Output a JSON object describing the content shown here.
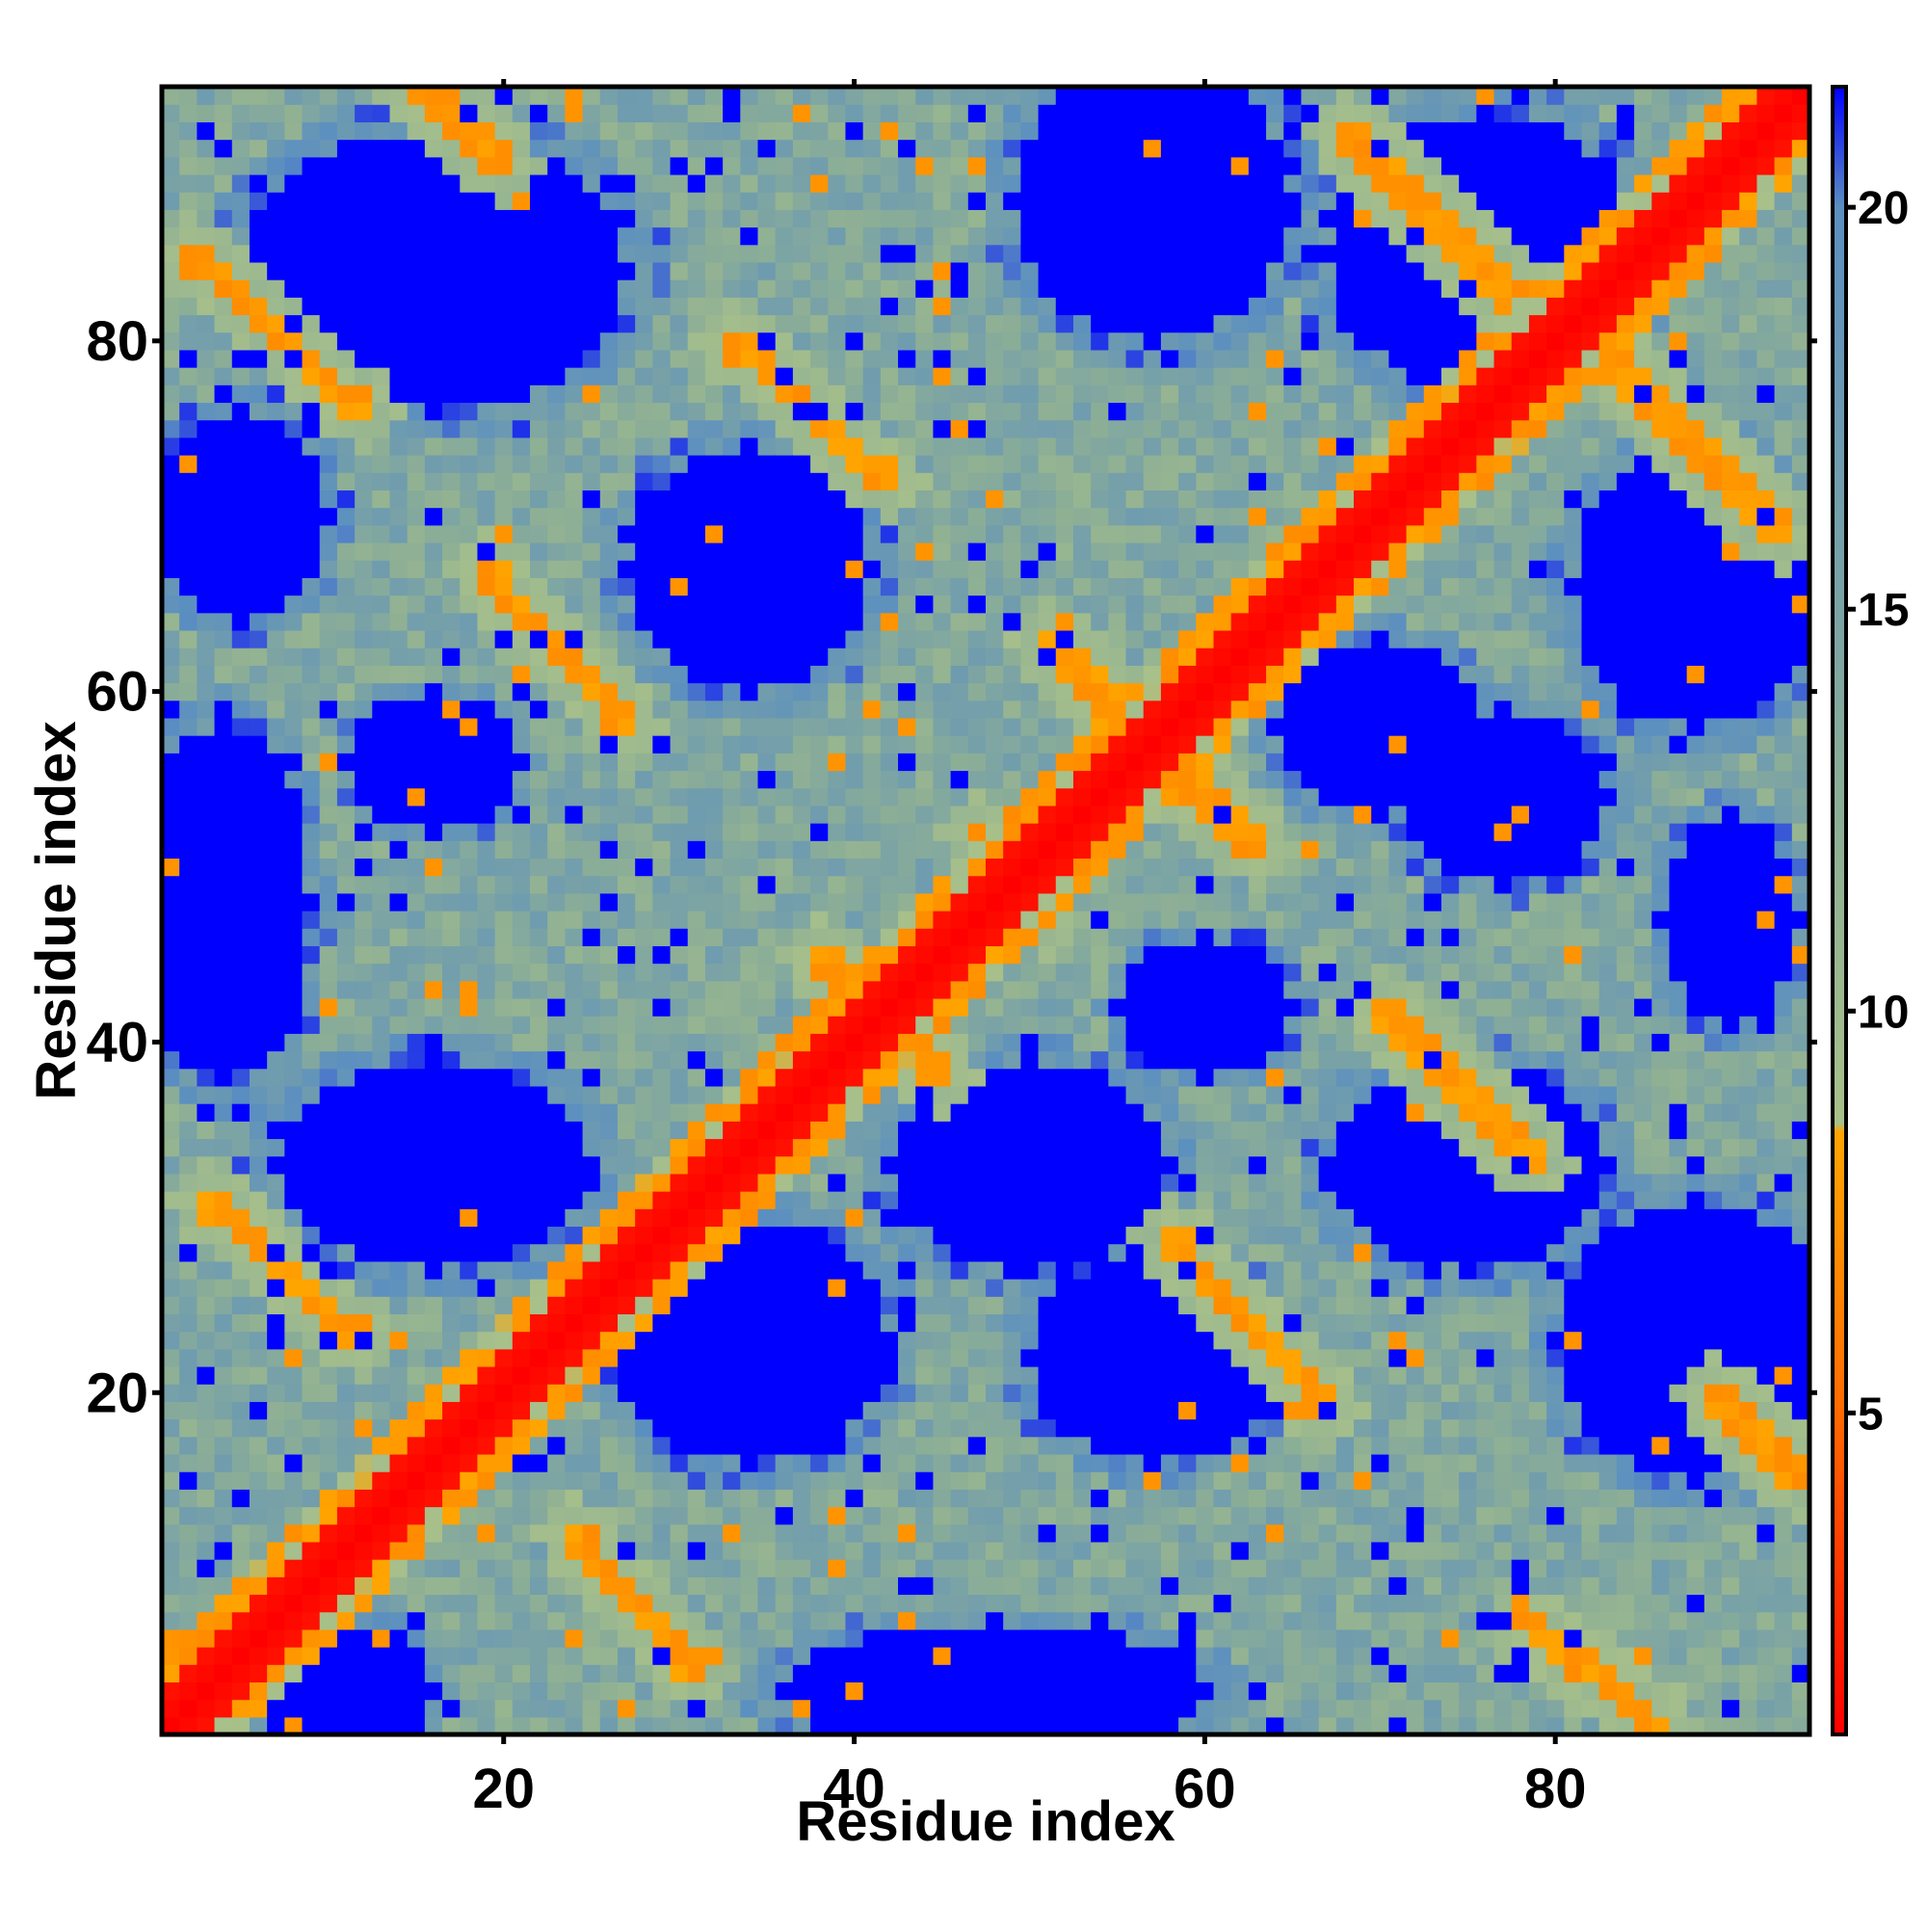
{
  "chart_data": {
    "type": "heatmap",
    "title": "",
    "xlabel": "Residue index",
    "ylabel": "Residue index",
    "n_residues": 94,
    "xlim": [
      0.5,
      94.5
    ],
    "ylim": [
      0.5,
      94.5
    ],
    "x_ticks": [
      20,
      40,
      60,
      80
    ],
    "y_ticks": [
      20,
      40,
      60,
      80
    ],
    "colorbar": {
      "range": [
        1,
        21.5
      ],
      "ticks": [
        5,
        10,
        15,
        20
      ],
      "stops": [
        {
          "value": 1,
          "color": "#ff0000"
        },
        {
          "value": 5,
          "color": "#ff6a00"
        },
        {
          "value": 8.5,
          "color": "#ffa500"
        },
        {
          "value": 8.6,
          "color": "#a8c08a"
        },
        {
          "value": 12,
          "color": "#8fb094"
        },
        {
          "value": 20,
          "color": "#5b8fc0"
        },
        {
          "value": 21.5,
          "color": "#0000ff"
        }
      ]
    },
    "diagonal_band_halfwidth": 2,
    "contact_bands": [
      {
        "p0": [
          2,
          85
        ],
        "p1": [
          12,
          76
        ],
        "value": 7
      },
      {
        "p0": [
          14,
          96
        ],
        "p1": [
          20,
          90
        ],
        "value": 7
      },
      {
        "p0": [
          33,
          80
        ],
        "p1": [
          42,
          72
        ],
        "value": 7
      },
      {
        "p0": [
          19,
          67
        ],
        "p1": [
          27,
          58
        ],
        "value": 7
      },
      {
        "p0": [
          38,
          45
        ],
        "p1": [
          45,
          38
        ],
        "value": 7
      },
      {
        "p0": [
          47,
          52
        ],
        "p1": [
          51,
          47
        ],
        "value": 7
      },
      {
        "p0": [
          51,
          63
        ],
        "p1": [
          63,
          51
        ],
        "value": 7
      },
      {
        "p0": [
          3,
          31
        ],
        "p1": [
          12,
          23
        ],
        "value": 7
      },
      {
        "p0": [
          24,
          12
        ],
        "p1": [
          31,
          4
        ],
        "value": 7
      },
      {
        "p0": [
          58,
          29
        ],
        "p1": [
          67,
          19
        ],
        "value": 7
      },
      {
        "p0": [
          70,
          42
        ],
        "p1": [
          79,
          33
        ],
        "value": 7
      },
      {
        "p0": [
          68,
          92
        ],
        "p1": [
          78,
          82
        ],
        "value": 7
      },
      {
        "p0": [
          82,
          80
        ],
        "p1": [
          93,
          69
        ],
        "value": 7
      },
      {
        "p0": [
          89,
          20
        ],
        "p1": [
          94,
          15
        ],
        "value": 7
      },
      {
        "p0": [
          78,
          7
        ],
        "p1": [
          86,
          1
        ],
        "value": 7
      }
    ],
    "voids": [
      {
        "cx": 16,
        "cy": 84,
        "rx": 11,
        "ry": 8
      },
      {
        "cx": 34,
        "cy": 67,
        "rx": 7,
        "ry": 7
      },
      {
        "cx": 16,
        "cy": 56,
        "rx": 5,
        "ry": 4
      },
      {
        "cx": 16,
        "cy": 33,
        "rx": 9,
        "ry": 6
      },
      {
        "cx": 34,
        "cy": 23,
        "rx": 8,
        "ry": 7
      },
      {
        "cx": 57,
        "cy": 88,
        "rx": 8,
        "ry": 8
      },
      {
        "cx": 76,
        "cy": 85,
        "rx": 9,
        "ry": 8
      },
      {
        "cx": 88,
        "cy": 66,
        "rx": 7,
        "ry": 8
      },
      {
        "cx": 77,
        "cy": 54,
        "rx": 6,
        "ry": 5
      },
      {
        "cx": 88,
        "cy": 23,
        "rx": 8,
        "ry": 8
      },
      {
        "cx": 75,
        "cy": 33,
        "rx": 8,
        "ry": 6
      },
      {
        "cx": 57,
        "cy": 22,
        "rx": 7,
        "ry": 6
      },
      {
        "cx": 50,
        "cy": 33,
        "rx": 8,
        "ry": 6
      },
      {
        "cx": 70,
        "cy": 58,
        "rx": 6,
        "ry": 5
      },
      {
        "cx": 60,
        "cy": 42,
        "rx": 5,
        "ry": 4
      },
      {
        "cx": 4,
        "cy": 48,
        "rx": 5,
        "ry": 10
      },
      {
        "cx": 5,
        "cy": 70,
        "rx": 5,
        "ry": 6
      },
      {
        "cx": 48,
        "cy": 3,
        "rx": 12,
        "ry": 4
      },
      {
        "cx": 11,
        "cy": 3,
        "rx": 5,
        "ry": 4
      },
      {
        "cx": 90,
        "cy": 47,
        "rx": 4,
        "ry": 6
      }
    ]
  }
}
